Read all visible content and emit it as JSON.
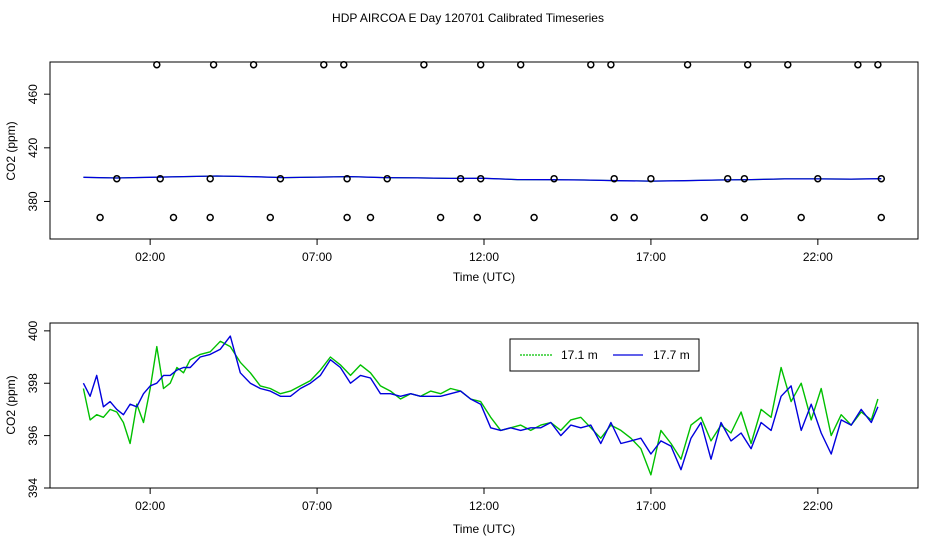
{
  "title": "HDP AIRCOA E  Day 120701  Calibrated Timeseries",
  "colors": {
    "green": "#00c000",
    "blue": "#0000dd",
    "axis": "#000000"
  },
  "chart_data": [
    {
      "type": "scatter",
      "xlabel": "Time (UTC)",
      "ylabel": "CO2 (ppm)",
      "xlim": [
        -1.0,
        25.0
      ],
      "ylim": [
        352,
        484
      ],
      "xticks": [
        {
          "v": 2,
          "label": "02:00"
        },
        {
          "v": 7,
          "label": "07:00"
        },
        {
          "v": 12,
          "label": "12:00"
        },
        {
          "v": 17,
          "label": "17:00"
        },
        {
          "v": 22,
          "label": "22:00"
        }
      ],
      "yticks": [
        {
          "v": 380,
          "label": "380"
        },
        {
          "v": 420,
          "label": "420"
        },
        {
          "v": 460,
          "label": "460"
        }
      ],
      "grid": false,
      "line": {
        "x": [
          0,
          1,
          2,
          3,
          4,
          5,
          6,
          7,
          8,
          9,
          10,
          11,
          12,
          13,
          14,
          15,
          16,
          17,
          18,
          19,
          20,
          21,
          22,
          23,
          23.9
        ],
        "y": [
          398,
          397.5,
          398,
          398.5,
          399,
          398.5,
          397.8,
          398.2,
          398.5,
          397.8,
          397.6,
          397.2,
          397.3,
          396.3,
          396.2,
          396,
          395.5,
          395.2,
          395.5,
          396,
          396.3,
          396.8,
          396.8,
          396.7,
          397
        ]
      },
      "points_high": {
        "y": 482,
        "x": [
          2.2,
          3.9,
          5.1,
          7.2,
          7.8,
          10.2,
          11.9,
          13.1,
          15.2,
          15.8,
          18.1,
          19.9,
          21.1,
          23.2,
          23.8
        ]
      },
      "points_mid": {
        "y": 397,
        "x": [
          1.0,
          2.3,
          3.8,
          5.9,
          7.9,
          9.1,
          11.3,
          11.9,
          14.1,
          15.9,
          17.0,
          19.3,
          19.8,
          22.0,
          23.9
        ]
      },
      "points_low": {
        "y": 368,
        "x": [
          0.5,
          2.7,
          3.8,
          5.6,
          7.9,
          8.6,
          10.7,
          11.8,
          13.5,
          15.9,
          16.5,
          18.6,
          19.8,
          21.5,
          23.9
        ]
      }
    },
    {
      "type": "line",
      "xlabel": "Time (UTC)",
      "ylabel": "CO2 (ppm)",
      "xlim": [
        -1.0,
        25.0
      ],
      "ylim": [
        394,
        400.3
      ],
      "xticks": [
        {
          "v": 2,
          "label": "02:00"
        },
        {
          "v": 7,
          "label": "07:00"
        },
        {
          "v": 12,
          "label": "12:00"
        },
        {
          "v": 17,
          "label": "17:00"
        },
        {
          "v": 22,
          "label": "22:00"
        }
      ],
      "yticks": [
        {
          "v": 394,
          "label": "394"
        },
        {
          "v": 396,
          "label": "396"
        },
        {
          "v": 398,
          "label": "398"
        },
        {
          "v": 400,
          "label": "400"
        }
      ],
      "grid": false,
      "legend": "top-center",
      "series": [
        {
          "name": "17.1 m",
          "color": "#00c000",
          "x": [
            0,
            0.2,
            0.4,
            0.6,
            0.8,
            1.0,
            1.2,
            1.4,
            1.6,
            1.8,
            2.0,
            2.2,
            2.4,
            2.6,
            2.8,
            3.0,
            3.2,
            3.5,
            3.8,
            4.1,
            4.4,
            4.7,
            5.0,
            5.3,
            5.6,
            5.9,
            6.2,
            6.5,
            6.8,
            7.1,
            7.4,
            7.7,
            8.0,
            8.3,
            8.6,
            8.9,
            9.2,
            9.5,
            9.8,
            10.1,
            10.4,
            10.7,
            11.0,
            11.3,
            11.6,
            11.9,
            12.2,
            12.5,
            12.8,
            13.1,
            13.4,
            13.7,
            14.0,
            14.3,
            14.6,
            14.9,
            15.2,
            15.5,
            15.8,
            16.1,
            16.4,
            16.7,
            17.0,
            17.3,
            17.6,
            17.9,
            18.2,
            18.5,
            18.8,
            19.1,
            19.4,
            19.7,
            20.0,
            20.3,
            20.6,
            20.9,
            21.2,
            21.5,
            21.8,
            22.1,
            22.4,
            22.7,
            23.0,
            23.3,
            23.6,
            23.8
          ],
          "y": [
            397.8,
            396.6,
            396.8,
            396.7,
            397.0,
            396.9,
            396.5,
            395.7,
            397.2,
            396.5,
            397.8,
            399.4,
            397.8,
            398.0,
            398.6,
            398.4,
            398.9,
            399.1,
            399.2,
            399.6,
            399.4,
            398.8,
            398.4,
            397.9,
            397.8,
            397.6,
            397.7,
            397.9,
            398.1,
            398.5,
            399.0,
            398.7,
            398.3,
            398.7,
            398.4,
            397.9,
            397.7,
            397.4,
            397.6,
            397.5,
            397.7,
            397.6,
            397.8,
            397.7,
            397.4,
            397.3,
            396.7,
            396.2,
            396.3,
            396.4,
            396.2,
            396.4,
            396.5,
            396.2,
            396.6,
            396.7,
            396.3,
            395.9,
            396.4,
            396.2,
            395.9,
            395.5,
            394.5,
            396.2,
            395.7,
            395.1,
            396.4,
            396.7,
            395.8,
            396.4,
            396.1,
            396.9,
            395.7,
            397.0,
            396.7,
            398.6,
            397.3,
            398.0,
            396.6,
            397.8,
            396.0,
            396.8,
            396.4,
            396.9,
            396.6,
            397.4
          ]
        },
        {
          "name": "17.7 m",
          "color": "#0000dd",
          "x": [
            0,
            0.2,
            0.4,
            0.6,
            0.8,
            1.0,
            1.2,
            1.4,
            1.6,
            1.8,
            2.0,
            2.2,
            2.4,
            2.6,
            2.8,
            3.0,
            3.2,
            3.5,
            3.8,
            4.1,
            4.4,
            4.7,
            5.0,
            5.3,
            5.6,
            5.9,
            6.2,
            6.5,
            6.8,
            7.1,
            7.4,
            7.7,
            8.0,
            8.3,
            8.6,
            8.9,
            9.2,
            9.5,
            9.8,
            10.1,
            10.4,
            10.7,
            11.0,
            11.3,
            11.6,
            11.9,
            12.2,
            12.5,
            12.8,
            13.1,
            13.4,
            13.7,
            14.0,
            14.3,
            14.6,
            14.9,
            15.2,
            15.5,
            15.8,
            16.1,
            16.4,
            16.7,
            17.0,
            17.3,
            17.6,
            17.9,
            18.2,
            18.5,
            18.8,
            19.1,
            19.4,
            19.7,
            20.0,
            20.3,
            20.6,
            20.9,
            21.2,
            21.5,
            21.8,
            22.1,
            22.4,
            22.7,
            23.0,
            23.3,
            23.6,
            23.8
          ],
          "y": [
            398.0,
            397.5,
            398.3,
            397.1,
            397.3,
            397.0,
            396.8,
            397.2,
            397.1,
            397.6,
            397.9,
            398.0,
            398.3,
            398.3,
            398.5,
            398.6,
            398.6,
            399.0,
            399.1,
            399.3,
            399.8,
            398.4,
            398.0,
            397.8,
            397.7,
            397.5,
            397.5,
            397.8,
            398.0,
            398.3,
            398.9,
            398.6,
            398.0,
            398.3,
            398.2,
            397.6,
            397.6,
            397.5,
            397.6,
            397.5,
            397.5,
            397.5,
            397.6,
            397.7,
            397.4,
            397.2,
            396.3,
            396.2,
            396.3,
            396.2,
            396.3,
            396.3,
            396.5,
            396.0,
            396.4,
            396.3,
            396.4,
            395.7,
            396.5,
            395.7,
            395.8,
            395.9,
            395.3,
            395.8,
            395.6,
            394.7,
            395.9,
            396.5,
            395.1,
            396.5,
            395.8,
            396.1,
            395.5,
            396.5,
            396.2,
            397.5,
            397.9,
            396.2,
            397.2,
            396.1,
            395.3,
            396.6,
            396.4,
            397.0,
            396.5,
            397.1
          ]
        }
      ]
    }
  ]
}
